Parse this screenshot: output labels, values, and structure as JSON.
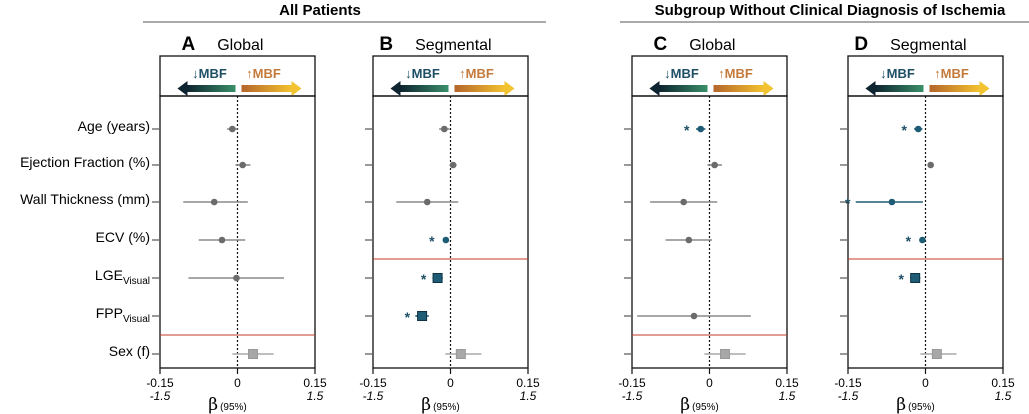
{
  "section_titles": {
    "left": "All Patients",
    "right": "Subgroup Without Clinical Diagnosis of Ischemia"
  },
  "legend": {
    "down_label": "↓MBF",
    "up_label": "↑MBF"
  },
  "colors": {
    "grey_point": "#6b6b6b",
    "grey_ci": "#8a8a8a",
    "significant": "#1e5b74",
    "sex_marker": "#a8a8a8",
    "divider": "#c0392b",
    "down_arrow_dark": "#0e2430",
    "down_arrow_light": "#3b8f6a",
    "up_arrow_dark": "#b5652a",
    "up_arrow_light": "#f2c230"
  },
  "chart_data": [
    {
      "type": "forest",
      "letter": "A",
      "title": "Global",
      "group": "All Patients",
      "xlim": [
        -0.15,
        0.15
      ],
      "xticks": [
        "-0.15",
        "0",
        "0.15"
      ],
      "xticks_alt": [
        "-1.5",
        "1.5"
      ],
      "xlabel": "β",
      "xlabel_sub": "(95%)",
      "rows": [
        "Age (years)",
        "Ejection Fraction (%)",
        "Wall Thickness (mm)",
        "ECV (%)",
        "LGE",
        "FPP",
        "Sex (f)"
      ],
      "row_subscripts": [
        "",
        "",
        "",
        "",
        "Visual",
        "Visual",
        ""
      ],
      "divider_after_row": 6,
      "estimates": [
        {
          "row": 0,
          "beta": -0.01,
          "lo": -0.02,
          "hi": 0.0,
          "sig": false
        },
        {
          "row": 1,
          "beta": 0.01,
          "lo": -0.004,
          "hi": 0.025,
          "sig": false
        },
        {
          "row": 2,
          "beta": -0.045,
          "lo": -0.105,
          "hi": 0.02,
          "sig": false
        },
        {
          "row": 3,
          "beta": -0.03,
          "lo": -0.075,
          "hi": 0.015,
          "sig": false
        },
        {
          "row": 4,
          "beta": -0.002,
          "lo": -0.095,
          "hi": 0.09,
          "sig": false
        },
        {
          "row": 6,
          "beta": 0.03,
          "lo": -0.01,
          "hi": 0.07,
          "sig": false,
          "scaled": true
        }
      ]
    },
    {
      "type": "forest",
      "letter": "B",
      "title": "Segmental",
      "group": "All Patients",
      "xlim": [
        -0.15,
        0.15
      ],
      "xticks": [
        "-0.15",
        "0",
        "0.15"
      ],
      "xticks_alt": [
        "-1.5",
        "1.5"
      ],
      "xlabel": "β",
      "xlabel_sub": "(95%)",
      "divider_after_row": 4,
      "estimates": [
        {
          "row": 0,
          "beta": -0.012,
          "lo": -0.022,
          "hi": -0.002,
          "sig": false
        },
        {
          "row": 1,
          "beta": 0.005,
          "lo": -0.002,
          "hi": 0.012,
          "sig": false
        },
        {
          "row": 2,
          "beta": -0.045,
          "lo": -0.105,
          "hi": 0.015,
          "sig": false
        },
        {
          "row": 3,
          "beta": -0.009,
          "lo": -0.014,
          "hi": -0.004,
          "sig": true
        },
        {
          "row": 4,
          "beta": -0.025,
          "lo": -0.035,
          "hi": -0.015,
          "sig": true,
          "scaled": true
        },
        {
          "row": 5,
          "beta": -0.055,
          "lo": -0.068,
          "hi": -0.042,
          "sig": true,
          "scaled": true
        },
        {
          "row": 6,
          "beta": 0.02,
          "lo": -0.01,
          "hi": 0.06,
          "sig": false,
          "scaled": true
        }
      ]
    },
    {
      "type": "forest",
      "letter": "C",
      "title": "Global",
      "group": "Subgroup Without Clinical Diagnosis of Ischemia",
      "xlim": [
        -0.15,
        0.15
      ],
      "xticks": [
        "-0.15",
        "0",
        "0.15"
      ],
      "xticks_alt": [
        "-1.5",
        "1.5"
      ],
      "xlabel": "β",
      "xlabel_sub": "(95%)",
      "divider_after_row": 6,
      "estimates": [
        {
          "row": 0,
          "beta": -0.017,
          "lo": -0.026,
          "hi": -0.008,
          "sig": true
        },
        {
          "row": 1,
          "beta": 0.01,
          "lo": -0.004,
          "hi": 0.024,
          "sig": false
        },
        {
          "row": 2,
          "beta": -0.05,
          "lo": -0.115,
          "hi": 0.015,
          "sig": false
        },
        {
          "row": 3,
          "beta": -0.04,
          "lo": -0.085,
          "hi": 0.005,
          "sig": false
        },
        {
          "row": 5,
          "beta": -0.03,
          "lo": -0.14,
          "hi": 0.08,
          "sig": false
        },
        {
          "row": 6,
          "beta": 0.03,
          "lo": -0.01,
          "hi": 0.07,
          "sig": false,
          "scaled": true
        }
      ]
    },
    {
      "type": "forest",
      "letter": "D",
      "title": "Segmental",
      "group": "Subgroup Without Clinical Diagnosis of Ischemia",
      "xlim": [
        -0.15,
        0.15
      ],
      "xticks": [
        "-0.15",
        "0",
        "0.15"
      ],
      "xticks_alt": [
        "-1.5",
        "1.5"
      ],
      "xlabel": "β",
      "xlabel_sub": "(95%)",
      "divider_after_row": 4,
      "estimates": [
        {
          "row": 0,
          "beta": -0.014,
          "lo": -0.022,
          "hi": -0.006,
          "sig": true
        },
        {
          "row": 1,
          "beta": 0.01,
          "lo": 0.004,
          "hi": 0.016,
          "sig": false
        },
        {
          "row": 2,
          "beta": -0.065,
          "lo": -0.135,
          "hi": -0.005,
          "sig": true
        },
        {
          "row": 3,
          "beta": -0.006,
          "lo": -0.01,
          "hi": -0.002,
          "sig": true
        },
        {
          "row": 4,
          "beta": -0.02,
          "lo": -0.03,
          "hi": -0.01,
          "sig": true,
          "scaled": true
        },
        {
          "row": 6,
          "beta": 0.022,
          "lo": -0.01,
          "hi": 0.06,
          "sig": false,
          "scaled": true
        }
      ]
    }
  ]
}
